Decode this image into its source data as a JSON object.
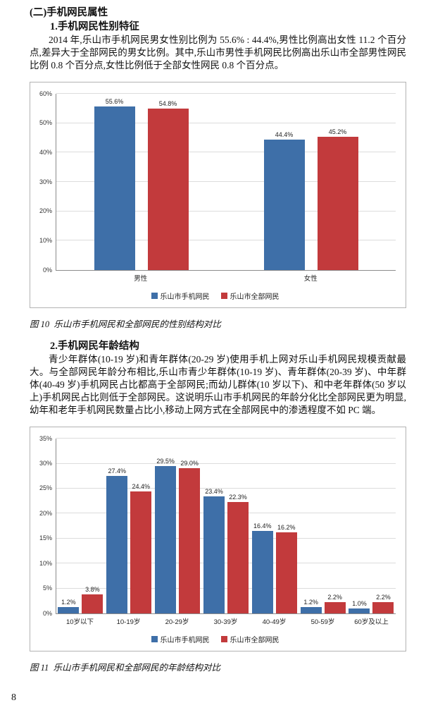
{
  "page": {
    "number": "8"
  },
  "sections": {
    "heading": "(二)手机网民属性",
    "sub1": "1.手机网民性别特征",
    "para1": "2014 年,乐山市手机网民男女性别比例为 55.6% : 44.4%,男性比例高出女性 11.2 个百分点,差异大于全部网民的男女比例。其中,乐山市男性手机网民比例高出乐山市全部男性网民比例 0.8 个百分点,女性比例低于全部女性网民 0.8 个百分点。",
    "fig10_caption": "图 10  乐山市手机网民和全部网民的性别结构对比",
    "sub2": "2.手机网民年龄结构",
    "para2": "青少年群体(10-19 岁)和青年群体(20-29 岁)使用手机上网对乐山手机网民规模贡献最大。与全部网民年龄分布相比,乐山市青少年群体(10-19 岁)、青年群体(20-39 岁)、中年群体(40-49 岁)手机网民占比都高于全部网民;而幼儿群体(10 岁以下)、和中老年群体(50 岁以上)手机网民占比则低于全部网民。这说明乐山市手机网民的年龄分化比全部网民更为明显,幼年和老年手机网民数量占比小,移动上网方式在全部网民中的渗透程度不如 PC 端。",
    "fig11_caption": "图 11  乐山市手机网民和全部网民的年龄结构对比"
  },
  "chart_data": [
    {
      "type": "bar",
      "title": "",
      "categories": [
        "男性",
        "女性"
      ],
      "series": [
        {
          "name": "乐山市手机网民",
          "color": "#3e6fa8",
          "values": [
            55.6,
            44.4
          ]
        },
        {
          "name": "乐山市全部网民",
          "color": "#c23a3c",
          "values": [
            54.8,
            45.2
          ]
        }
      ],
      "ylim": [
        0,
        60
      ],
      "ytick_step": 10,
      "label_suffix": "%",
      "grid": true,
      "legend_position": "bottom"
    },
    {
      "type": "bar",
      "title": "",
      "categories": [
        "10岁以下",
        "10-19岁",
        "20-29岁",
        "30-39岁",
        "40-49岁",
        "50-59岁",
        "60岁及以上"
      ],
      "series": [
        {
          "name": "乐山市手机网民",
          "color": "#3e6fa8",
          "values": [
            1.2,
            27.4,
            29.5,
            23.4,
            16.4,
            1.2,
            1.0
          ]
        },
        {
          "name": "乐山市全部网民",
          "color": "#c23a3c",
          "values": [
            3.8,
            24.4,
            29.0,
            22.3,
            16.2,
            2.2,
            2.2
          ]
        }
      ],
      "ylim": [
        0,
        35
      ],
      "ytick_step": 5,
      "label_suffix": "%",
      "grid": true,
      "legend_position": "bottom"
    }
  ]
}
